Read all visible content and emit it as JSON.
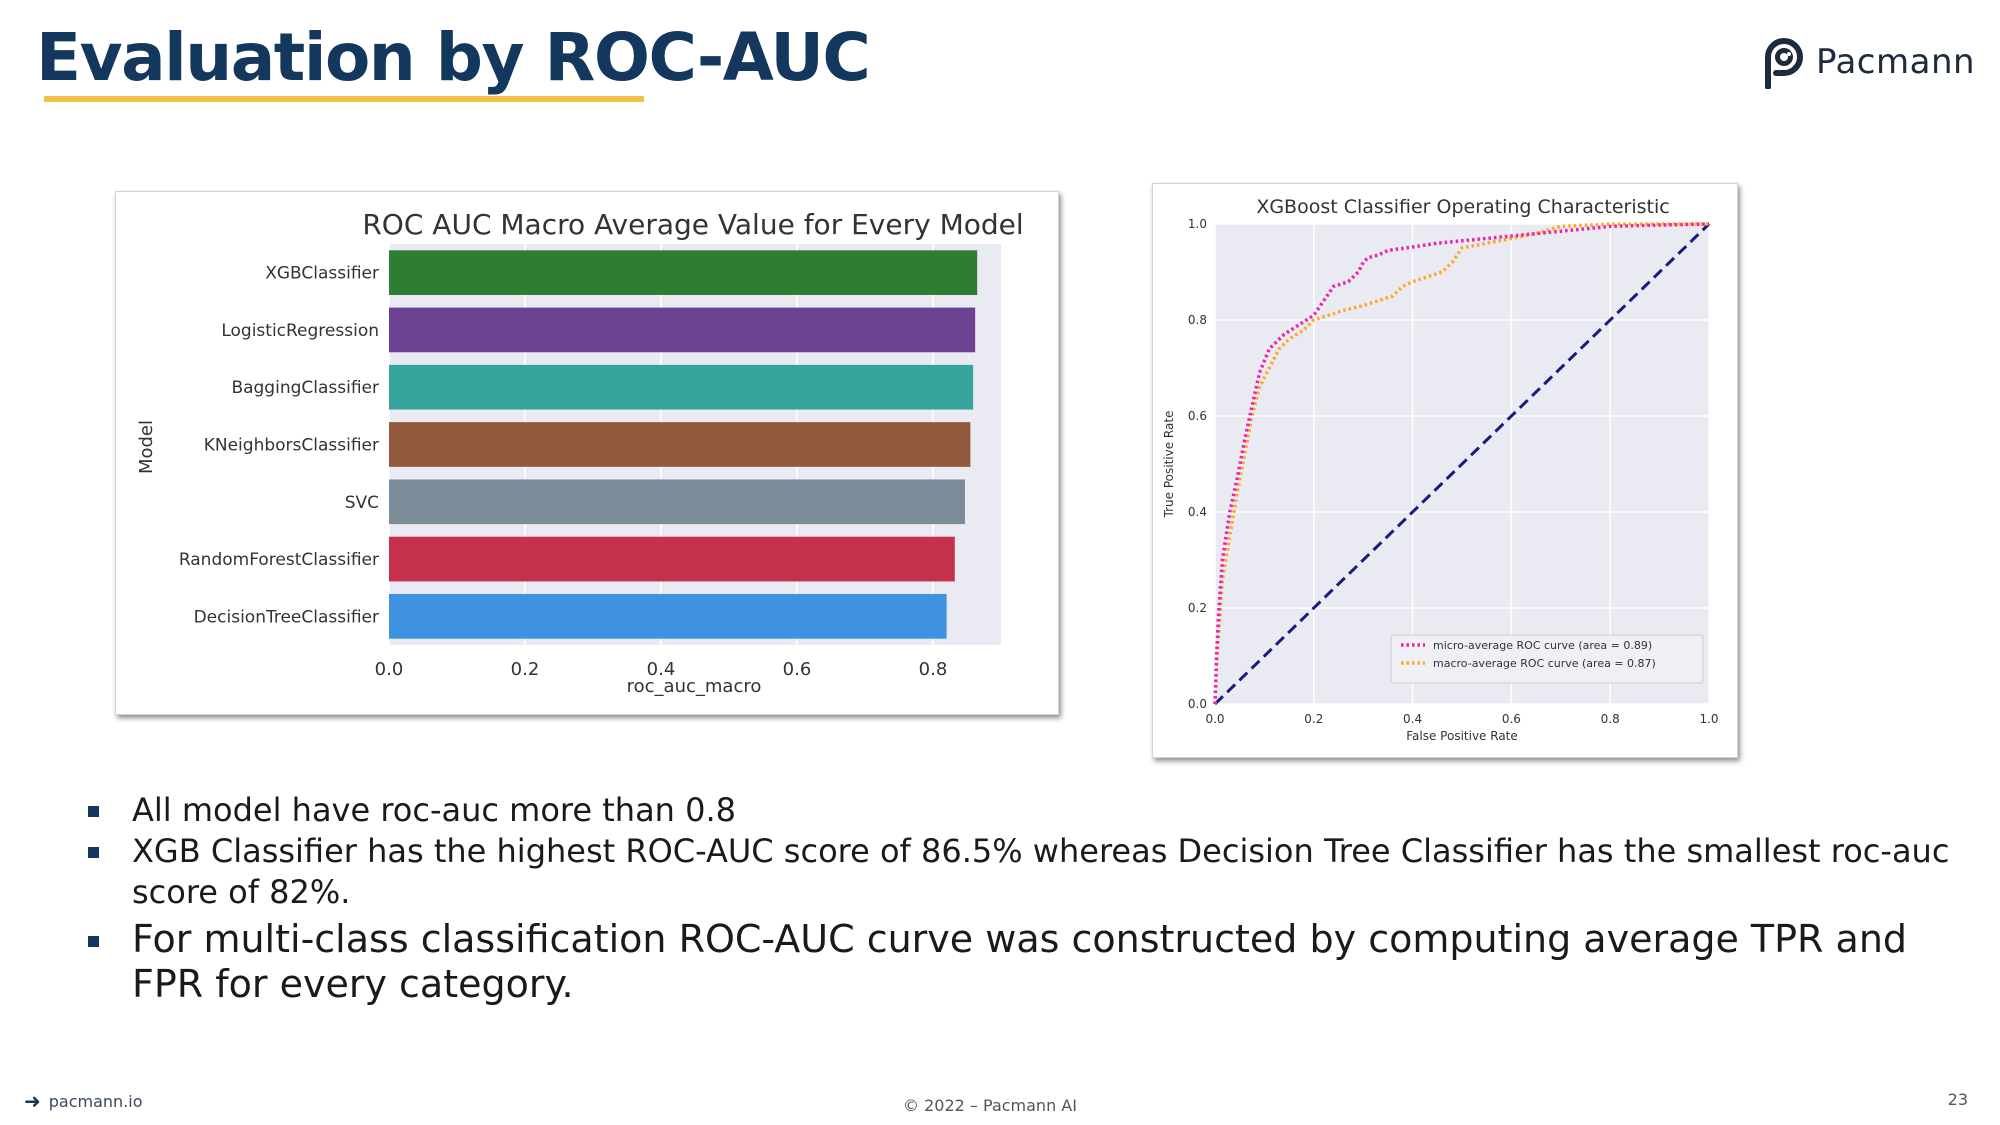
{
  "slide": {
    "title": "Evaluation by ROC-AUC",
    "logo_text": "Pacmann",
    "accent_color": "#f0c24a",
    "title_color": "#14375e",
    "bullets": [
      {
        "text": "All model have roc-auc more than 0.8",
        "size": "small"
      },
      {
        "text": "XGB Classifier has the highest ROC-AUC score of 86.5% whereas Decision Tree Classifier has the smallest roc-auc score of 82%.",
        "size": "small"
      },
      {
        "text": "For multi-class classification ROC-AUC curve was constructed by computing average TPR and FPR for every category.",
        "size": "large"
      }
    ],
    "footer": {
      "left": "pacmann.io",
      "center": "© 2022 – Pacmann AI",
      "page_number": "23"
    }
  },
  "chart_data": [
    {
      "type": "bar",
      "orientation": "horizontal",
      "title": "ROC AUC Macro Average Value for Every Model",
      "xlabel": "roc_auc_macro",
      "ylabel": "Model",
      "xlim": [
        0,
        0.9
      ],
      "xticks": [
        "0.0",
        "0.2",
        "0.4",
        "0.6",
        "0.8"
      ],
      "grid": true,
      "background": "#eaeaf2",
      "categories": [
        "XGBClassifier",
        "LogisticRegression",
        "BaggingClassifier",
        "KNeighborsClassifier",
        "SVC",
        "RandomForestClassifier",
        "DecisionTreeClassifier"
      ],
      "values": [
        0.865,
        0.862,
        0.859,
        0.855,
        0.847,
        0.832,
        0.82
      ],
      "colors": [
        "#2e7d32",
        "#6a4291",
        "#36a39c",
        "#915a3c",
        "#7c8b98",
        "#c5304d",
        "#3e92e0"
      ]
    },
    {
      "type": "line",
      "title": "XGBoost Classifier Operating Characteristic",
      "xlabel": "False Positive Rate",
      "ylabel": "True Positive Rate",
      "xlim": [
        0,
        1
      ],
      "ylim": [
        0,
        1
      ],
      "xticks": [
        "0.0",
        "0.2",
        "0.4",
        "0.6",
        "0.8",
        "1.0"
      ],
      "yticks": [
        "0.0",
        "0.2",
        "0.4",
        "0.6",
        "0.8",
        "1.0"
      ],
      "grid": true,
      "legend_position": "lower-right",
      "background": "#eaeaf2",
      "series": [
        {
          "name": "micro-average ROC curve (area = 0.89)",
          "color": "#ee22aa",
          "style": "dotted",
          "x": [
            0,
            0.003,
            0.008,
            0.015,
            0.03,
            0.045,
            0.06,
            0.075,
            0.09,
            0.11,
            0.14,
            0.17,
            0.2,
            0.22,
            0.24,
            0.27,
            0.29,
            0.3,
            0.31,
            0.33,
            0.35,
            0.4,
            0.45,
            0.5,
            0.55,
            0.6,
            0.65,
            0.7,
            0.75,
            0.8,
            0.9,
            1.0
          ],
          "y": [
            0,
            0.1,
            0.2,
            0.3,
            0.4,
            0.47,
            0.55,
            0.62,
            0.69,
            0.74,
            0.77,
            0.79,
            0.81,
            0.84,
            0.87,
            0.88,
            0.9,
            0.92,
            0.93,
            0.935,
            0.945,
            0.952,
            0.96,
            0.965,
            0.97,
            0.975,
            0.98,
            0.985,
            0.99,
            0.995,
            0.998,
            1.0
          ]
        },
        {
          "name": "macro-average ROC curve (area = 0.87)",
          "color": "#ffa726",
          "style": "dotted",
          "x": [
            0,
            0.003,
            0.008,
            0.015,
            0.03,
            0.045,
            0.06,
            0.075,
            0.09,
            0.11,
            0.13,
            0.15,
            0.18,
            0.2,
            0.23,
            0.26,
            0.3,
            0.33,
            0.36,
            0.38,
            0.4,
            0.43,
            0.46,
            0.48,
            0.5,
            0.55,
            0.6,
            0.65,
            0.7,
            0.8,
            0.9,
            1.0
          ],
          "y": [
            0,
            0.08,
            0.16,
            0.26,
            0.35,
            0.44,
            0.52,
            0.6,
            0.66,
            0.7,
            0.74,
            0.76,
            0.78,
            0.8,
            0.81,
            0.82,
            0.83,
            0.84,
            0.85,
            0.87,
            0.88,
            0.89,
            0.9,
            0.92,
            0.95,
            0.96,
            0.97,
            0.98,
            0.995,
            1.0,
            1.0,
            1.0
          ]
        },
        {
          "name": "",
          "color": "#1a1a80",
          "style": "dashed",
          "x": [
            0,
            1
          ],
          "y": [
            0,
            1
          ]
        }
      ]
    }
  ]
}
